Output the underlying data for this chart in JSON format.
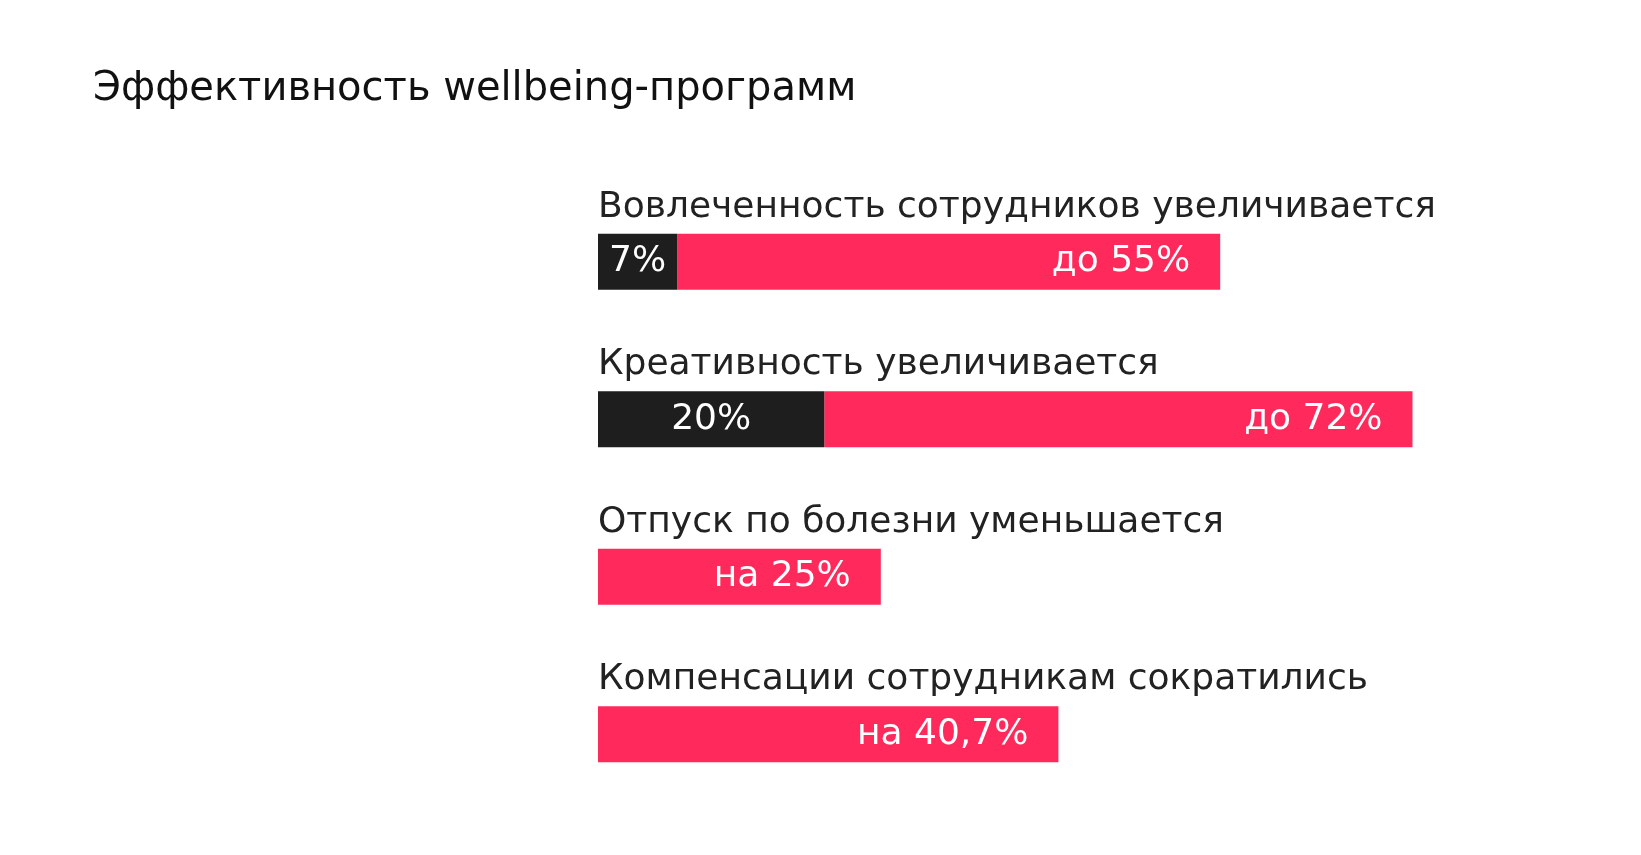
{
  "chart_data": {
    "type": "bar",
    "title": "Эффективность wellbeing-программ",
    "orientation": "horizontal",
    "stacked": true,
    "categories": [
      "Вовлеченность сотрудников увеличивается",
      "Креативность увеличивается",
      "Отпуск по болезни уменьшается",
      "Компенсации сотрудникам сократились"
    ],
    "series": [
      {
        "color": "#1e1e1e",
        "values": [
          7,
          20,
          null,
          null
        ],
        "value_labels": [
          "7%",
          "20%",
          null,
          null
        ]
      },
      {
        "color": "#ff2a5b",
        "values": [
          48,
          52,
          25,
          40.7
        ]
      }
    ],
    "totals": [
      "до 55%",
      "до 72%",
      "на 25%",
      "на 40,7%"
    ],
    "legend": false,
    "tick_labels": false
  }
}
